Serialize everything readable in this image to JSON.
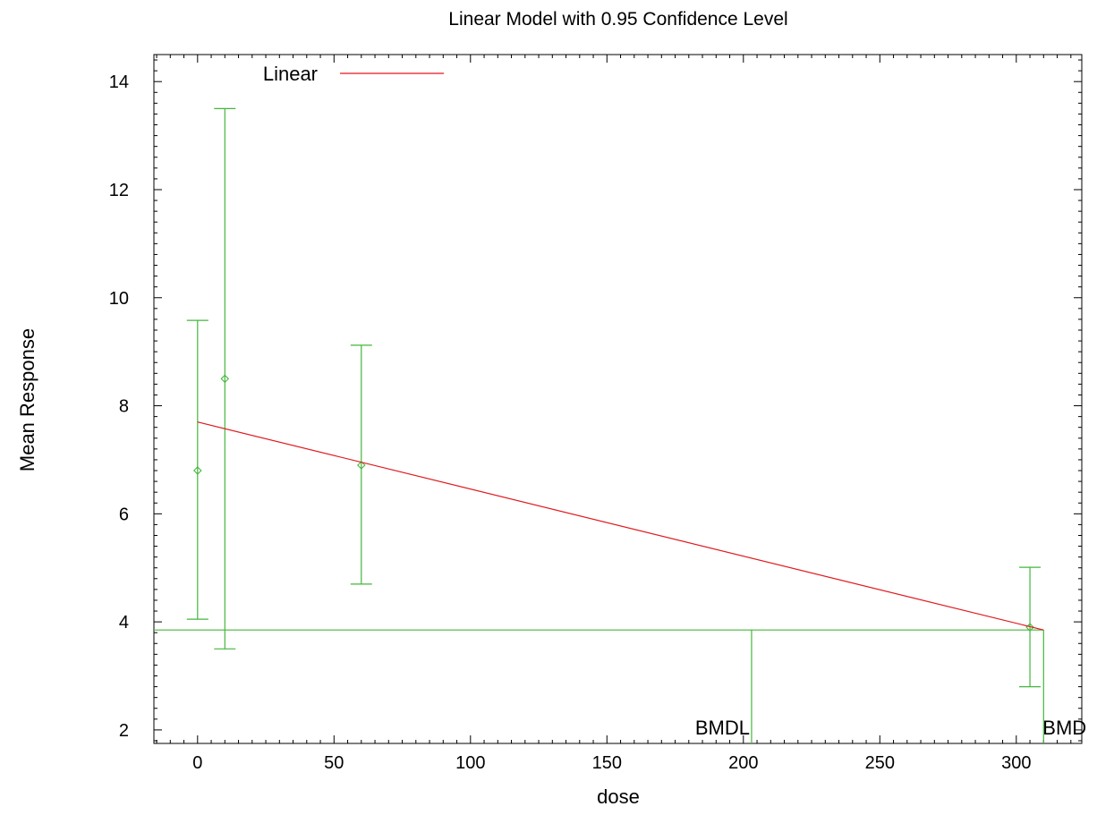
{
  "chart_data": {
    "type": "scatter",
    "title": "Linear Model with 0.95 Confidence Level",
    "xlabel": "dose",
    "ylabel": "Mean Response",
    "xlim": [
      -16,
      324
    ],
    "ylim": [
      1.75,
      14.5
    ],
    "x_ticks": [
      0,
      50,
      100,
      150,
      200,
      250,
      300
    ],
    "x_tick_labels": [
      "0",
      "50",
      "100",
      "150",
      "200",
      "250",
      "300"
    ],
    "y_ticks": [
      2,
      4,
      6,
      8,
      10,
      12,
      14
    ],
    "y_tick_labels": [
      "2",
      "4",
      "6",
      "8",
      "10",
      "12",
      "14"
    ],
    "grid": false,
    "legend_position": "top-left",
    "colors": {
      "model": "#e0191e",
      "data": "#44b63c",
      "axes": "#000000"
    },
    "series": [
      {
        "name": "Linear",
        "kind": "line",
        "x": [
          0,
          310
        ],
        "y": [
          7.7,
          3.85
        ]
      },
      {
        "kind": "error-bar",
        "x": [
          0,
          10,
          60,
          305
        ],
        "y": [
          6.8,
          8.5,
          6.9,
          3.9
        ],
        "lower": [
          4.05,
          3.5,
          4.7,
          2.8
        ],
        "upper": [
          9.58,
          13.5,
          9.12,
          5.01
        ]
      }
    ],
    "annotations": [
      {
        "label": "BMDL",
        "x": 203,
        "y": 3.85
      },
      {
        "label": "BMD",
        "x": 310,
        "y": 3.85
      }
    ]
  }
}
